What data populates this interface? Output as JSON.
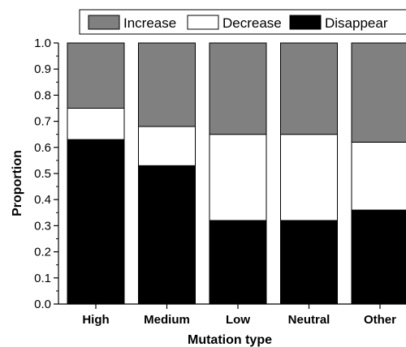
{
  "chart_data": {
    "type": "bar",
    "stacked": true,
    "categories": [
      "High",
      "Medium",
      "Low",
      "Neutral",
      "Other"
    ],
    "series": [
      {
        "name": "Disappear",
        "values": [
          0.63,
          0.53,
          0.32,
          0.32,
          0.36
        ],
        "color": "#000000"
      },
      {
        "name": "Decrease",
        "values": [
          0.12,
          0.15,
          0.33,
          0.33,
          0.26
        ],
        "color": "#ffffff"
      },
      {
        "name": "Increase",
        "values": [
          0.25,
          0.32,
          0.35,
          0.35,
          0.38
        ],
        "color": "#808080"
      }
    ],
    "legend_order": [
      "Increase",
      "Decrease",
      "Disappear"
    ],
    "legend_position": "top",
    "xlabel": "Mutation type",
    "ylabel": "Proportion",
    "ylim": [
      0,
      1.0
    ],
    "yticks": [
      "0.0",
      "0.1",
      "0.2",
      "0.3",
      "0.4",
      "0.5",
      "0.6",
      "0.7",
      "0.8",
      "0.9",
      "1.0"
    ],
    "grid": false
  }
}
